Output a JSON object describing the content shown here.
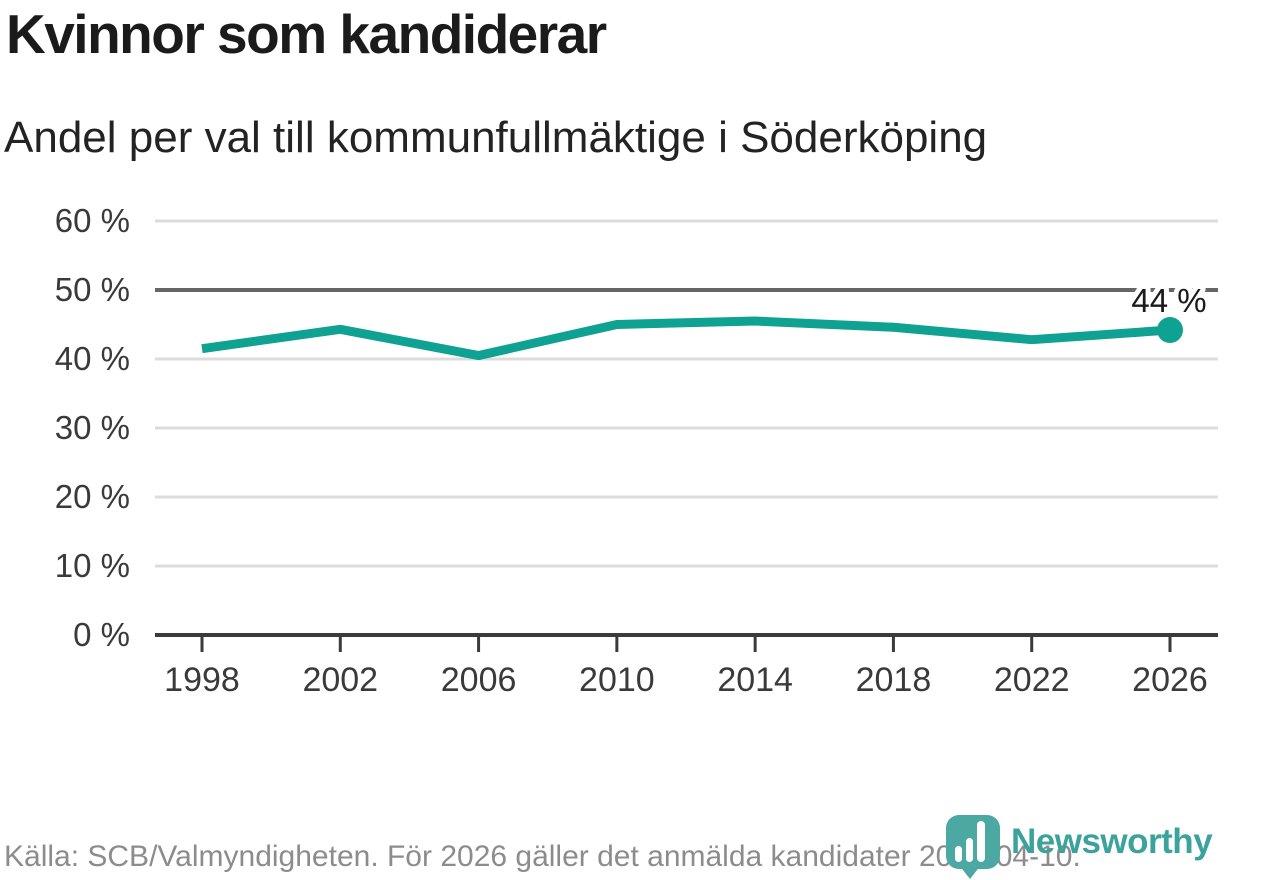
{
  "header": {
    "title": "Kvinnor som kandiderar",
    "subtitle": "Andel per val till kommunfullmäktige i Söderköping"
  },
  "chart_data": {
    "type": "line",
    "title": "Kvinnor som kandiderar",
    "subtitle": "Andel per val till kommunfullmäktige i Söderköping",
    "x": [
      1998,
      2002,
      2006,
      2010,
      2014,
      2018,
      2022,
      2026
    ],
    "x_tick_labels": [
      "1998",
      "2002",
      "2006",
      "2010",
      "2014",
      "2018",
      "2022",
      "2026"
    ],
    "values": [
      41.5,
      44.3,
      40.5,
      45.0,
      45.5,
      44.6,
      42.8,
      44.2
    ],
    "ylim": [
      0,
      60
    ],
    "y_ticks": [
      0,
      10,
      20,
      30,
      40,
      50,
      60
    ],
    "y_tick_labels": [
      "0 %",
      "10 %",
      "20 %",
      "30 %",
      "40 %",
      "50 %",
      "60 %"
    ],
    "grid": "horizontal",
    "reference_gridline_value": 50,
    "end_point_label": "44 %",
    "marker_on_last_point": true,
    "legend": "none",
    "line_color": "#0FA191"
  },
  "footer": {
    "source": "Källa: SCB/Valmyndigheten. För 2026 gäller det anmälda kandidater 2026-04-10."
  },
  "logo": {
    "wordmark": "Newsworthy",
    "icon": "newsworthy-bars-bubble-icon",
    "wordmark_color": "#3BA29C",
    "icon_color": "#4BA8A3"
  },
  "colors": {
    "line": "#0FA191",
    "axis": "#3b3b3b",
    "gridline": "#dcdcdc",
    "reference_gridline": "#666666",
    "tick_label": "#3a3a3a",
    "end_label": "#1b1b1b",
    "source_text": "#8c8c8c"
  }
}
